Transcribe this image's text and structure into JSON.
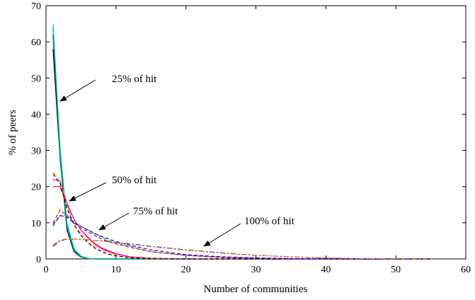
{
  "chart_data": {
    "type": "line",
    "x_label": "Number of communities",
    "y_label": "% of peers",
    "x": [
      1,
      2,
      3,
      4,
      5,
      6,
      7,
      8,
      9,
      10,
      12,
      15,
      20,
      25,
      30,
      35,
      40,
      45,
      50,
      55
    ],
    "xlim": [
      0,
      60
    ],
    "xticks": [
      0,
      10,
      20,
      30,
      40,
      50,
      60
    ],
    "ylim": [
      0,
      70
    ],
    "yticks": [
      0,
      10,
      20,
      30,
      40,
      50,
      60,
      70
    ],
    "grid": false,
    "annotations": [
      "25% of hit",
      "50% of hit",
      "75% of hit",
      "100% of hit"
    ],
    "series": [
      {
        "color": "#000000",
        "style": "solid",
        "values": [
          58,
          28,
          8,
          2,
          0.5,
          0.1,
          0,
          0,
          0,
          0,
          0,
          0,
          0,
          0,
          0,
          0,
          0,
          0,
          0,
          0
        ]
      },
      {
        "color": "#0000ff",
        "style": "solid",
        "values": [
          62,
          30,
          9,
          2.5,
          0.6,
          0.1,
          0,
          0,
          0,
          0,
          0,
          0,
          0,
          0,
          0,
          0,
          0,
          0,
          0,
          0
        ]
      },
      {
        "color": "#00cccc",
        "style": "solid",
        "values": [
          65,
          31,
          10,
          3,
          0.8,
          0.2,
          0.05,
          0,
          0,
          0,
          0,
          0,
          0,
          0,
          0,
          0,
          0,
          0,
          0,
          0
        ]
      },
      {
        "color": "#00aa66",
        "style": "solid",
        "values": [
          64,
          29,
          9,
          2.5,
          0.6,
          0.1,
          0,
          0,
          0,
          0,
          0,
          0,
          0,
          0,
          0,
          0,
          0,
          0,
          0,
          0
        ]
      },
      {
        "color": "#ff0000",
        "style": "solid",
        "values": [
          20,
          20,
          15,
          11,
          8,
          6,
          4.2,
          3,
          2.2,
          1.5,
          0.6,
          0.2,
          0,
          0,
          0,
          0,
          0,
          0,
          0,
          0
        ]
      },
      {
        "color": "#ff00ff",
        "style": "solid",
        "values": [
          22,
          21.5,
          15.5,
          11,
          8,
          5.8,
          4,
          2.8,
          2,
          1.4,
          0.5,
          0.1,
          0,
          0,
          0,
          0,
          0,
          0,
          0,
          0
        ]
      },
      {
        "color": "#e0c000",
        "style": "dashdot",
        "values": [
          24,
          22,
          15,
          10,
          7,
          5,
          3.5,
          2.5,
          1.8,
          1.2,
          0.4,
          0.1,
          0,
          0,
          0,
          0,
          0,
          0,
          0,
          0
        ]
      },
      {
        "color": "#000000",
        "style": "dashed",
        "values": [
          23.5,
          21,
          14,
          9.5,
          6.5,
          4.5,
          3,
          2,
          1.3,
          0.9,
          0.3,
          0.05,
          0,
          0,
          0,
          0,
          0,
          0,
          0,
          0
        ]
      },
      {
        "color": "#00aaaa",
        "style": "dashed",
        "values": [
          9,
          12,
          12,
          10.5,
          9,
          8,
          7,
          6,
          5,
          4.5,
          3.5,
          2,
          1,
          0.5,
          0.2,
          0.1,
          0,
          0,
          0,
          0
        ]
      },
      {
        "color": "#ff0000",
        "style": "dashed",
        "values": [
          10,
          13.5,
          12,
          10,
          8.5,
          7.5,
          6.5,
          5.5,
          4.8,
          4.2,
          3.2,
          2,
          1,
          0.4,
          0.2,
          0.05,
          0,
          0,
          0,
          0
        ]
      },
      {
        "color": "#0000ff",
        "style": "dashed",
        "values": [
          9.5,
          12,
          11.5,
          10,
          9,
          8,
          7,
          6.2,
          5.5,
          4.8,
          3.8,
          2.5,
          1.2,
          0.6,
          0.3,
          0.1,
          0,
          0,
          0,
          0
        ]
      },
      {
        "color": "#0000cc",
        "style": "dashdot",
        "values": [
          3.5,
          5,
          5.5,
          5.5,
          5.4,
          5.3,
          5.1,
          5,
          4.8,
          4.5,
          4.2,
          3.5,
          2.5,
          1.7,
          1,
          0.6,
          0.3,
          0.1,
          0.05,
          0
        ]
      },
      {
        "color": "#ff8800",
        "style": "dashdot",
        "values": [
          4,
          5.2,
          5.6,
          5.5,
          5.4,
          5.3,
          5.1,
          4.9,
          4.7,
          4.5,
          4.1,
          3.4,
          2.4,
          1.6,
          1,
          0.6,
          0.3,
          0.1,
          0.05,
          0
        ]
      }
    ]
  }
}
